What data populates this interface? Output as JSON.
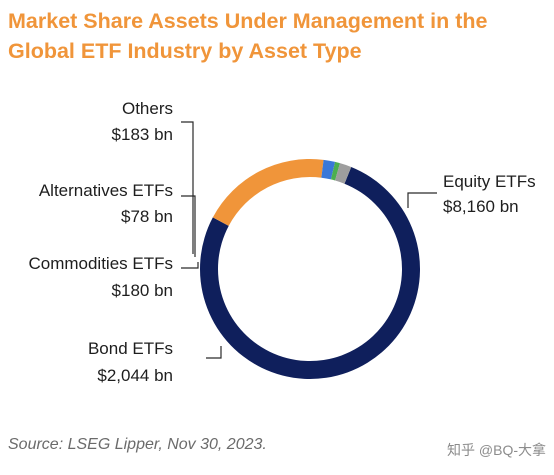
{
  "title": "Market Share Assets Under Management in the Global ETF Industry by Asset Type",
  "source": "Source: LSEG Lipper, Nov 30, 2023.",
  "watermark": "知乎 @BQ-大拿",
  "chart_data": {
    "type": "pie",
    "donut": true,
    "title": "Market Share Assets Under Management in the Global ETF Industry by Asset Type",
    "unit": "bn",
    "categories": [
      "Equity ETFs",
      "Bond ETFs",
      "Commodities ETFs",
      "Alternatives ETFs",
      "Others"
    ],
    "values": [
      8160,
      2044,
      180,
      78,
      183
    ],
    "value_labels": [
      "$8,160 bn",
      "$2,044 bn",
      "$180 bn",
      "$78 bn",
      "$183 bn"
    ],
    "colors": [
      "#0f1f5c",
      "#f0953a",
      "#3a78d8",
      "#4caf50",
      "#9e9e9e"
    ]
  }
}
